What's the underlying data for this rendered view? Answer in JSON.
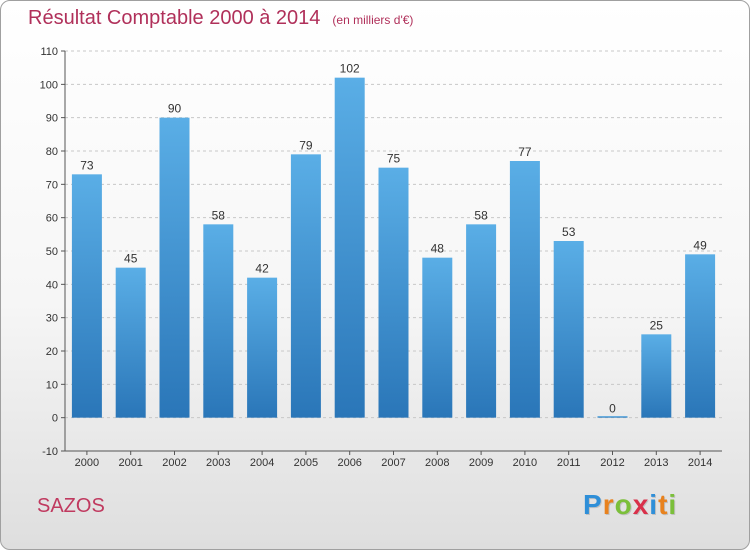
{
  "chart_data": {
    "type": "bar",
    "title": "Résultat Comptable 2000 à 2014",
    "unit_label": "(en milliers d'€)",
    "categories": [
      "2000",
      "2001",
      "2002",
      "2003",
      "2004",
      "2005",
      "2006",
      "2007",
      "2008",
      "2009",
      "2010",
      "2011",
      "2012",
      "2013",
      "2014"
    ],
    "values": [
      73,
      45,
      90,
      58,
      42,
      79,
      102,
      75,
      48,
      58,
      77,
      53,
      0,
      25,
      49
    ],
    "ylim": [
      -10,
      110
    ],
    "yticks": [
      -10,
      0,
      10,
      20,
      30,
      40,
      50,
      60,
      70,
      80,
      90,
      100,
      110
    ],
    "xlabel": "",
    "ylabel": "",
    "grid": true,
    "bar_color": "#3a8fd4"
  },
  "commune": "SAZOS",
  "logo": {
    "letters": [
      "P",
      "r",
      "o",
      "x",
      "i",
      "t",
      "i"
    ],
    "colors": [
      "#2f8fd8",
      "#e8821e",
      "#7bbf3a",
      "#d9304a",
      "#2f8fd8",
      "#e8821e",
      "#7bbf3a"
    ]
  }
}
